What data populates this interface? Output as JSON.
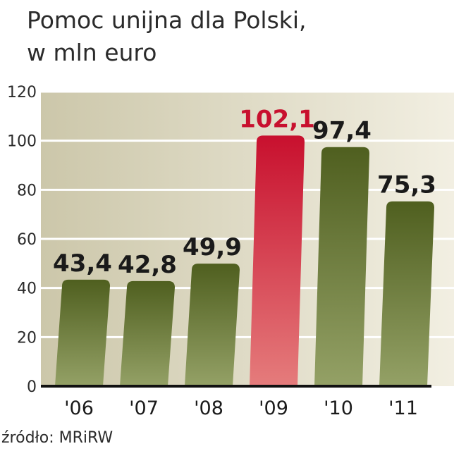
{
  "chart_data": {
    "type": "bar",
    "title": "Pomoc unijna dla Polski,",
    "subtitle": "w mln euro",
    "categories": [
      "'06",
      "'07",
      "'08",
      "'09",
      "'10",
      "'11"
    ],
    "values": [
      43.4,
      42.8,
      49.9,
      102.1,
      97.4,
      75.3
    ],
    "value_labels": [
      "43,4",
      "42,8",
      "49,9",
      "102,1",
      "97,4",
      "75,3"
    ],
    "highlight_index": 3,
    "ylim": [
      0,
      120
    ],
    "yticks": [
      0,
      20,
      40,
      60,
      80,
      100,
      120
    ],
    "xlabel": "",
    "ylabel": "",
    "grid": true,
    "source": "źródło: MRiRW",
    "colors": {
      "bar_dark": "#4f5f1f",
      "bar_light": "#94a166",
      "highlight_dark": "#c8102e",
      "highlight_light": "#e57c7c",
      "highlight_text": "#c8102e",
      "text": "#1a1a1a",
      "background_dark": "#ccc7aa",
      "background_light": "#f2efe2"
    }
  }
}
